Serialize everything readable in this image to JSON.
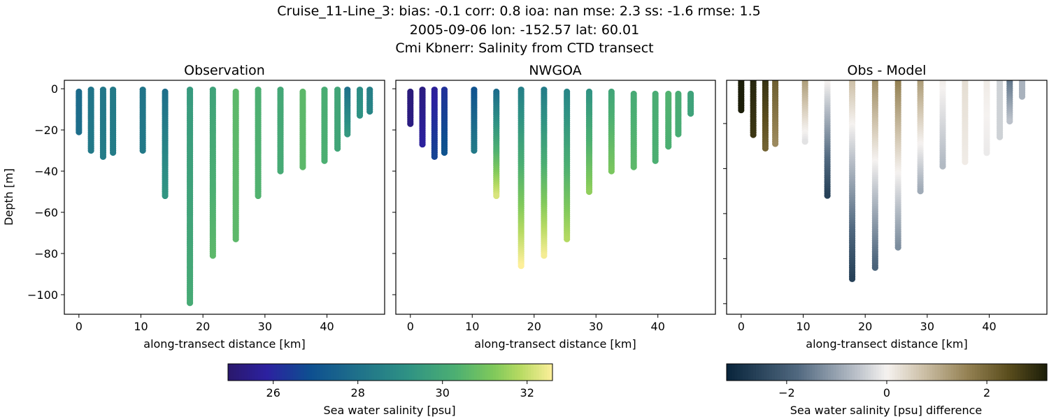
{
  "suptitle": [
    "Cruise_11-Line_3: bias: -0.1  corr: 0.8  ioa: nan  mse: 2.3  ss: -1.6  rmse: 1.5",
    "2005-09-06 lon: -152.57 lat: 60.01",
    "Cmi Kbnerr: Salinity from CTD transect"
  ],
  "chart_data": [
    {
      "type": "scatter",
      "title": "Observation",
      "xlabel": "along-transect distance [km]",
      "ylabel": "Depth [m]",
      "xlim": [
        -2.35,
        49.3
      ],
      "ylim": [
        -109.5,
        4.1
      ],
      "xticks": [
        0,
        10,
        20,
        30,
        40
      ],
      "yticks": [
        0,
        -20,
        -40,
        -60,
        -80,
        -100
      ],
      "show_xticklabels": true,
      "show_yticklabels": true,
      "colormap": "haline",
      "casts": [
        {
          "x": 0.0,
          "top": -1.5,
          "bottom": -21,
          "value_top": 27.8,
          "value_bottom": 27.9
        },
        {
          "x": 1.95,
          "top": -0.5,
          "bottom": -30,
          "value_top": 28.1,
          "value_bottom": 28.3
        },
        {
          "x": 3.9,
          "top": -0.5,
          "bottom": -33,
          "value_top": 28.2,
          "value_bottom": 28.4
        },
        {
          "x": 5.5,
          "top": -0.5,
          "bottom": -31,
          "value_top": 28.3,
          "value_bottom": 28.4
        },
        {
          "x": 10.3,
          "top": -0.5,
          "bottom": -30,
          "value_top": 28.1,
          "value_bottom": 28.3
        },
        {
          "x": 13.9,
          "top": -1.5,
          "bottom": -52,
          "value_top": 27.9,
          "value_bottom": 29.3
        },
        {
          "x": 17.9,
          "top": -0.5,
          "bottom": -104,
          "value_top": 29.5,
          "value_bottom": 30.1
        },
        {
          "x": 21.6,
          "top": -0.5,
          "bottom": -81,
          "value_top": 29.8,
          "value_bottom": 30.6
        },
        {
          "x": 25.3,
          "top": -1.5,
          "bottom": -73,
          "value_top": 30.6,
          "value_bottom": 30.6
        },
        {
          "x": 28.9,
          "top": -0.5,
          "bottom": -52,
          "value_top": 30.3,
          "value_bottom": 30.4
        },
        {
          "x": 32.5,
          "top": -0.5,
          "bottom": -40,
          "value_top": 30.0,
          "value_bottom": 30.1
        },
        {
          "x": 36.1,
          "top": -1.5,
          "bottom": -38,
          "value_top": 30.6,
          "value_bottom": 30.6
        },
        {
          "x": 39.6,
          "top": -0.5,
          "bottom": -35,
          "value_top": 30.2,
          "value_bottom": 30.3
        },
        {
          "x": 41.7,
          "top": -0.5,
          "bottom": -29,
          "value_top": 29.9,
          "value_bottom": 29.9
        },
        {
          "x": 43.3,
          "top": -0.5,
          "bottom": -22,
          "value_top": 28.0,
          "value_bottom": 29.4
        },
        {
          "x": 45.3,
          "top": -0.5,
          "bottom": -13,
          "value_top": 29.0,
          "value_bottom": 29.2
        },
        {
          "x": 46.9,
          "top": -0.5,
          "bottom": -11,
          "value_top": 28.5,
          "value_bottom": 28.7
        }
      ]
    },
    {
      "type": "scatter",
      "title": "NWGOA",
      "xlabel": "along-transect distance [km]",
      "ylabel": "",
      "xlim": [
        -2.35,
        49.3
      ],
      "ylim": [
        -109.5,
        4.1
      ],
      "xticks": [
        0,
        10,
        20,
        30,
        40
      ],
      "yticks": [
        0,
        -20,
        -40,
        -60,
        -80,
        -100
      ],
      "show_xticklabels": true,
      "show_yticklabels": false,
      "colormap": "haline",
      "casts": [
        {
          "x": 0.0,
          "top": -1.5,
          "bottom": -17,
          "value_top": 25.2,
          "value_bottom": 25.3
        },
        {
          "x": 1.95,
          "top": -0.5,
          "bottom": -27,
          "value_top": 25.3,
          "value_bottom": 25.8
        },
        {
          "x": 3.9,
          "top": -0.5,
          "bottom": -33,
          "value_top": 25.7,
          "value_bottom": 26.6
        },
        {
          "x": 5.5,
          "top": -0.5,
          "bottom": -31,
          "value_top": 26.2,
          "value_bottom": 27.0
        },
        {
          "x": 10.3,
          "top": -0.5,
          "bottom": -30,
          "value_top": 27.0,
          "value_bottom": 28.3
        },
        {
          "x": 13.9,
          "top": -1.5,
          "bottom": -52,
          "value_top": 27.8,
          "value_bottom": 32.2
        },
        {
          "x": 17.9,
          "top": -0.5,
          "bottom": -86,
          "value_top": 28.5,
          "value_bottom": 32.6
        },
        {
          "x": 21.6,
          "top": -0.5,
          "bottom": -81,
          "value_top": 28.4,
          "value_bottom": 32.5
        },
        {
          "x": 25.3,
          "top": -1.5,
          "bottom": -73,
          "value_top": 28.7,
          "value_bottom": 31.8
        },
        {
          "x": 28.9,
          "top": -1.5,
          "bottom": -50,
          "value_top": 29.2,
          "value_bottom": 31.4
        },
        {
          "x": 32.5,
          "top": -1.5,
          "bottom": -40,
          "value_top": 29.9,
          "value_bottom": 31.1
        },
        {
          "x": 36.1,
          "top": -2.5,
          "bottom": -38,
          "value_top": 30.1,
          "value_bottom": 30.6
        },
        {
          "x": 39.6,
          "top": -2.5,
          "bottom": -35,
          "value_top": 30.2,
          "value_bottom": 30.3
        },
        {
          "x": 41.7,
          "top": -2.5,
          "bottom": -28,
          "value_top": 30.4,
          "value_bottom": 30.3
        },
        {
          "x": 43.3,
          "top": -2.5,
          "bottom": -22,
          "value_top": 30.2,
          "value_bottom": 30.2
        },
        {
          "x": 45.3,
          "top": -2.5,
          "bottom": -12,
          "value_top": 29.8,
          "value_bottom": 29.8
        }
      ]
    },
    {
      "type": "scatter",
      "title": "Obs - Model",
      "xlabel": "along-transect distance [km]",
      "ylabel": "",
      "xlim": [
        -2.35,
        49.3
      ],
      "ylim": [
        -104.7,
        -0.8
      ],
      "xticks": [
        0,
        10,
        20,
        30,
        40
      ],
      "yticks": [
        -20,
        -40,
        -60,
        -80,
        -100
      ],
      "show_xticklabels": true,
      "show_yticklabels": false,
      "colormap": "diff",
      "casts": [
        {
          "x": 0.0,
          "top": 0,
          "bottom": -14,
          "value_top": 3.2,
          "value_bottom": 3.2
        },
        {
          "x": 1.95,
          "top": 0,
          "bottom": -25,
          "value_top": 3.1,
          "value_bottom": 2.8
        },
        {
          "x": 3.9,
          "top": 0,
          "bottom": -31,
          "value_top": 2.9,
          "value_bottom": 2.1
        },
        {
          "x": 5.5,
          "top": 0,
          "bottom": -29,
          "value_top": 2.2,
          "value_bottom": 1.5
        },
        {
          "x": 10.3,
          "top": 0,
          "bottom": -28,
          "value_top": 1.3,
          "value_bottom": -0.2
        },
        {
          "x": 13.9,
          "top": 0,
          "bottom": -52,
          "value_top": 0.1,
          "value_bottom": -2.6
        },
        {
          "x": 17.9,
          "top": 0,
          "bottom": -89,
          "value_top": 0.8,
          "value_bottom": -2.6
        },
        {
          "x": 21.6,
          "top": 0,
          "bottom": -84,
          "value_top": 1.5,
          "value_bottom": -1.9
        },
        {
          "x": 25.3,
          "top": 0,
          "bottom": -75,
          "value_top": 1.7,
          "value_bottom": -1.3
        },
        {
          "x": 28.9,
          "top": 0,
          "bottom": -50,
          "value_top": 1.3,
          "value_bottom": -0.9
        },
        {
          "x": 32.5,
          "top": 0,
          "bottom": -39,
          "value_top": 0.1,
          "value_bottom": -0.7
        },
        {
          "x": 36.1,
          "top": -1.5,
          "bottom": -37,
          "value_top": 0.3,
          "value_bottom": 0.1
        },
        {
          "x": 39.6,
          "top": -1.5,
          "bottom": -33,
          "value_top": 0.1,
          "value_bottom": -0.1
        },
        {
          "x": 41.7,
          "top": -1.5,
          "bottom": -26,
          "value_top": -0.4,
          "value_bottom": -0.4
        },
        {
          "x": 43.3,
          "top": -1.5,
          "bottom": -19,
          "value_top": -1.6,
          "value_bottom": -0.6
        },
        {
          "x": 45.3,
          "top": -1.5,
          "bottom": -8,
          "value_top": -0.8,
          "value_bottom": -0.8
        }
      ]
    }
  ],
  "colorbars": [
    {
      "label": "Sea water salinity [psu]",
      "range": [
        24.93,
        32.6
      ],
      "ticks": [
        26,
        28,
        30,
        32
      ],
      "colormap": "haline"
    },
    {
      "label": "Sea water salinity [psu] difference",
      "range": [
        -3.2,
        3.2
      ],
      "ticks": [
        -2,
        0,
        2
      ],
      "colormap": "diff"
    }
  ],
  "colormaps": {
    "haline": [
      [
        0,
        "#2a186c"
      ],
      [
        0.12,
        "#2c21a0"
      ],
      [
        0.25,
        "#0e4e90"
      ],
      [
        0.4,
        "#1f718a"
      ],
      [
        0.55,
        "#2e9184"
      ],
      [
        0.7,
        "#4caf72"
      ],
      [
        0.82,
        "#80c95b"
      ],
      [
        0.9,
        "#b6da62"
      ],
      [
        1,
        "#fdef9a"
      ]
    ],
    "diff": [
      [
        0,
        "#08243b"
      ],
      [
        0.22,
        "#50687f"
      ],
      [
        0.4,
        "#b7bec7"
      ],
      [
        0.5,
        "#f5f2f0"
      ],
      [
        0.6,
        "#d2c6b0"
      ],
      [
        0.75,
        "#958254"
      ],
      [
        0.88,
        "#5a4d1d"
      ],
      [
        1,
        "#1c1e09"
      ]
    ]
  }
}
